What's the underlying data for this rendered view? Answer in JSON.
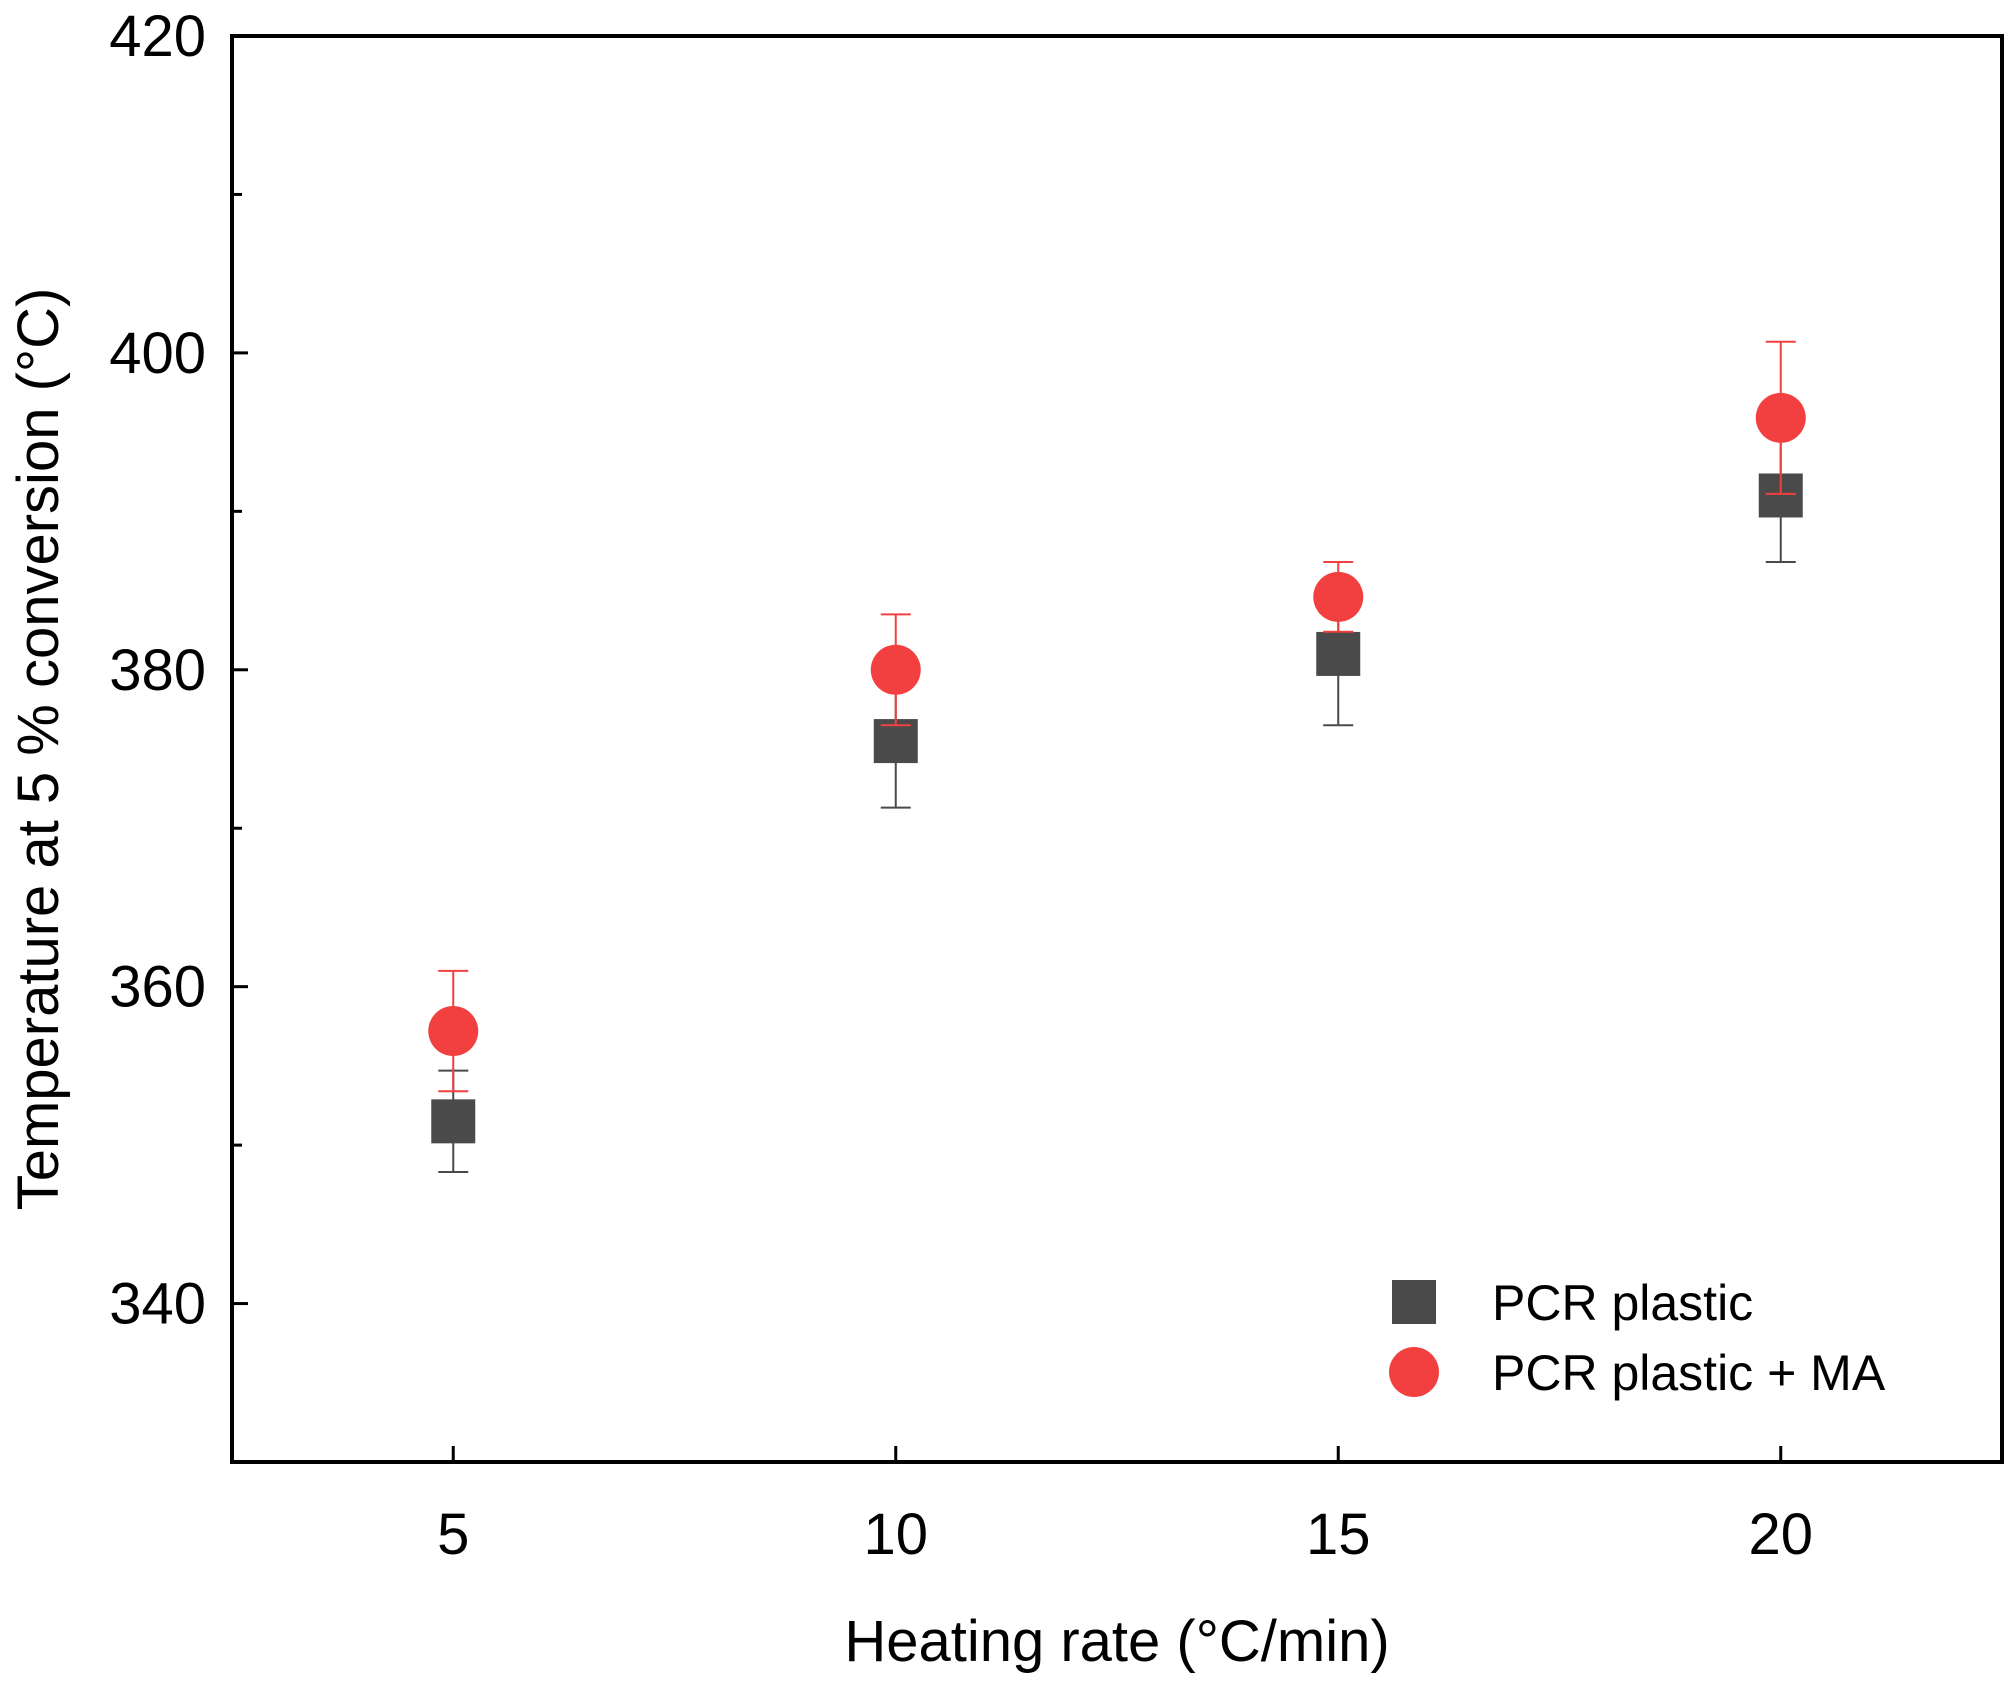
{
  "chart_data": {
    "type": "scatter",
    "title": "",
    "xlabel": "Heating rate (°C/min)",
    "ylabel": "Temperature at 5 % conversion (°C)",
    "xlim": [
      2.5,
      22.5
    ],
    "ylim": [
      330,
      420
    ],
    "xticks": [
      5,
      10,
      15,
      20
    ],
    "xtick_labels": [
      "5",
      "10",
      "15",
      "20"
    ],
    "yticks": [
      340,
      360,
      380,
      400,
      420
    ],
    "ytick_labels": [
      "340",
      "360",
      "380",
      "400",
      "420"
    ],
    "yminor_ticks": [
      350,
      370,
      390,
      410
    ],
    "grid": false,
    "legend_position": "bottom-right",
    "series": [
      {
        "name": "PCR plastic",
        "marker": "square",
        "color": "#4a4a4a",
        "error_color": "#4a4a4a",
        "x": [
          5,
          10,
          15,
          20
        ],
        "y": [
          351.5,
          375.5,
          381.0,
          391.0
        ],
        "error": [
          3.2,
          4.2,
          4.5,
          4.2
        ]
      },
      {
        "name": "PCR plastic + MA",
        "marker": "circle",
        "color": "#f24040",
        "error_color": "#f24040",
        "x": [
          5,
          10,
          15,
          20
        ],
        "y": [
          357.2,
          380.0,
          384.6,
          395.9
        ],
        "error": [
          3.8,
          3.5,
          2.2,
          4.8
        ]
      }
    ]
  }
}
